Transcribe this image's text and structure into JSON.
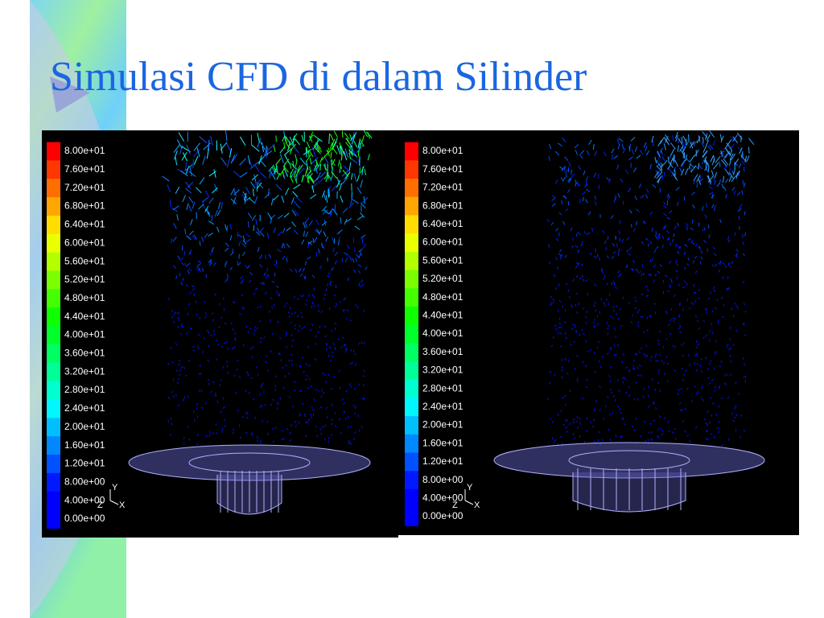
{
  "header": {
    "title": "Simulasi CFD di dalam Silinder"
  },
  "panels": [
    {
      "legend": [
        "8.00e+01",
        "7.60e+01",
        "7.20e+01",
        "6.80e+01",
        "6.40e+01",
        "6.00e+01",
        "5.60e+01",
        "5.20e+01",
        "4.80e+01",
        "4.40e+01",
        "4.00e+01",
        "3.60e+01",
        "3.20e+01",
        "2.80e+01",
        "2.40e+01",
        "2.00e+01",
        "1.60e+01",
        "1.20e+01",
        "8.00e+00",
        "4.00e+00",
        "0.00e+00"
      ],
      "axes": {
        "y": "Y",
        "z": "Z",
        "x": "X"
      }
    },
    {
      "legend": [
        "8.00e+01",
        "7.60e+01",
        "7.20e+01",
        "6.80e+01",
        "6.40e+01",
        "6.00e+01",
        "5.60e+01",
        "5.20e+01",
        "4.80e+01",
        "4.40e+01",
        "4.00e+01",
        "3.60e+01",
        "3.20e+01",
        "2.80e+01",
        "2.40e+01",
        "2.00e+01",
        "1.60e+01",
        "1.20e+01",
        "8.00e+00",
        "4.00e+00",
        "0.00e+00"
      ],
      "axes": {
        "y": "Y",
        "z": "Z",
        "x": "X"
      }
    }
  ]
}
